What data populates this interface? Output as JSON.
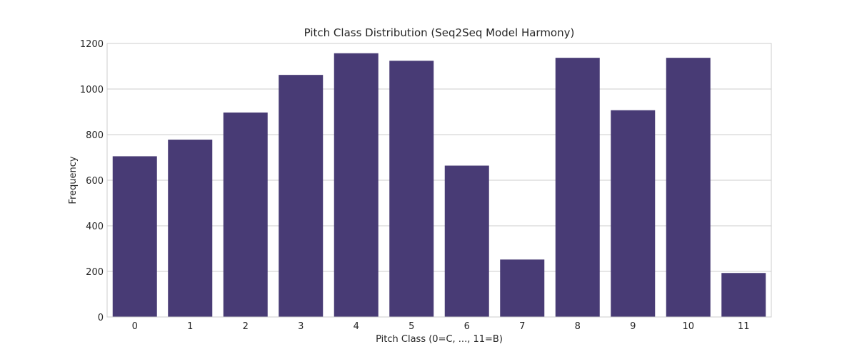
{
  "chart_data": {
    "type": "bar",
    "title": "Pitch Class Distribution (Seq2Seq Model Harmony)",
    "xlabel": "Pitch Class (0=C, ..., 11=B)",
    "ylabel": "Frequency",
    "categories": [
      "0",
      "1",
      "2",
      "3",
      "4",
      "5",
      "6",
      "7",
      "8",
      "9",
      "10",
      "11"
    ],
    "values": [
      705,
      778,
      897,
      1062,
      1157,
      1124,
      664,
      252,
      1137,
      907,
      1137,
      193
    ],
    "ylim": [
      0,
      1200
    ],
    "yticks": [
      0,
      200,
      400,
      600,
      800,
      1000,
      1200
    ],
    "grid": true,
    "legend": "none",
    "colors": {
      "bar": "#483b75",
      "grid": "#cccccc",
      "spine": "#cccccc",
      "text": "#262626"
    }
  }
}
